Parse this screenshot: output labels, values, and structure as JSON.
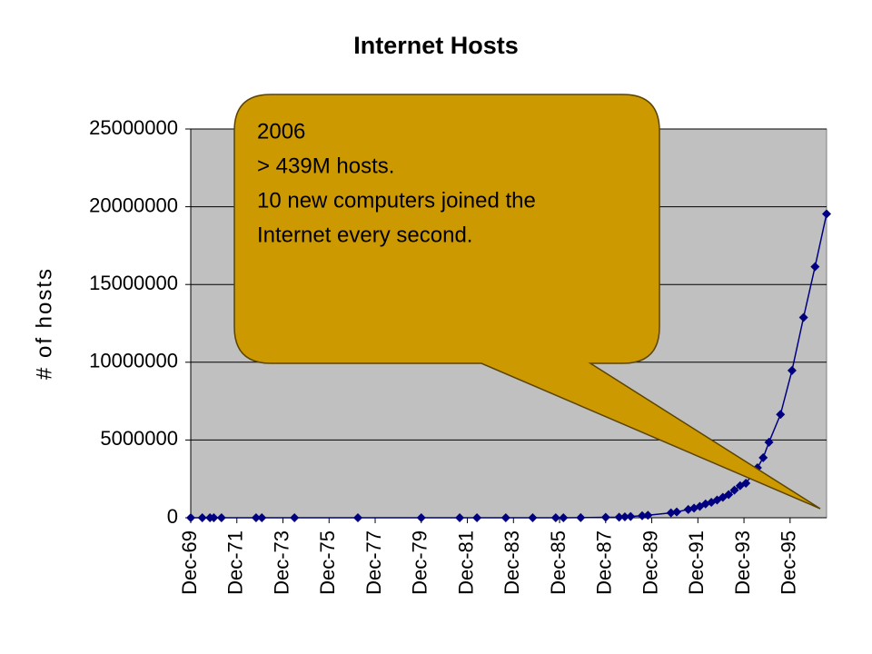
{
  "chart_data": {
    "type": "line",
    "title": "Internet Hosts",
    "y_label": "# of hosts",
    "x": [
      "1969-12",
      "1970-06",
      "1970-10",
      "1970-12",
      "1971-04",
      "1972-10",
      "1973-01",
      "1974-06",
      "1977-03",
      "1979-12",
      "1981-08",
      "1982-05",
      "1983-08",
      "1984-10",
      "1985-10",
      "1986-02",
      "1986-11",
      "1987-12",
      "1988-07",
      "1988-10",
      "1989-01",
      "1989-07",
      "1989-10",
      "1990-10",
      "1991-01",
      "1991-07",
      "1991-10",
      "1992-01",
      "1992-04",
      "1992-07",
      "1992-10",
      "1993-01",
      "1993-04",
      "1993-07",
      "1993-10",
      "1994-01",
      "1994-07",
      "1994-10",
      "1995-01",
      "1995-07",
      "1996-01",
      "1996-07",
      "1997-01",
      "1997-07"
    ],
    "series": [
      {
        "name": "hosts",
        "color": "#000080",
        "values": [
          4,
          9,
          11,
          13,
          23,
          31,
          35,
          62,
          111,
          188,
          213,
          235,
          562,
          1024,
          1961,
          2308,
          5089,
          28174,
          33000,
          56000,
          80000,
          130000,
          159000,
          313000,
          376000,
          535000,
          617000,
          727000,
          890000,
          992000,
          1136000,
          1313000,
          1486000,
          1776000,
          2056000,
          2217000,
          3212000,
          3864000,
          4852000,
          6642000,
          9472000,
          12881000,
          16146000,
          19540000
        ]
      }
    ],
    "xlim": [
      "1969-12",
      "1997-07"
    ],
    "xticks": [
      {
        "value": "1969-12",
        "label": "Dec-69"
      },
      {
        "value": "1971-12",
        "label": "Dec-71"
      },
      {
        "value": "1973-12",
        "label": "Dec-73"
      },
      {
        "value": "1975-12",
        "label": "Dec-75"
      },
      {
        "value": "1977-12",
        "label": "Dec-77"
      },
      {
        "value": "1979-12",
        "label": "Dec-79"
      },
      {
        "value": "1981-12",
        "label": "Dec-81"
      },
      {
        "value": "1983-12",
        "label": "Dec-83"
      },
      {
        "value": "1985-12",
        "label": "Dec-85"
      },
      {
        "value": "1987-12",
        "label": "Dec-87"
      },
      {
        "value": "1989-12",
        "label": "Dec-89"
      },
      {
        "value": "1991-12",
        "label": "Dec-91"
      },
      {
        "value": "1993-12",
        "label": "Dec-93"
      },
      {
        "value": "1995-12",
        "label": "Dec-95"
      }
    ],
    "ylim": [
      0,
      25000000
    ],
    "yticks": [
      0,
      5000000,
      10000000,
      15000000,
      20000000,
      25000000
    ],
    "grid": true,
    "plot_background": "#c0c0c0",
    "annotation": {
      "lines": [
        "2006",
        "> 439M hosts.",
        "10 new computers joined the",
        "Internet every second."
      ],
      "color": "#cc9900"
    }
  }
}
